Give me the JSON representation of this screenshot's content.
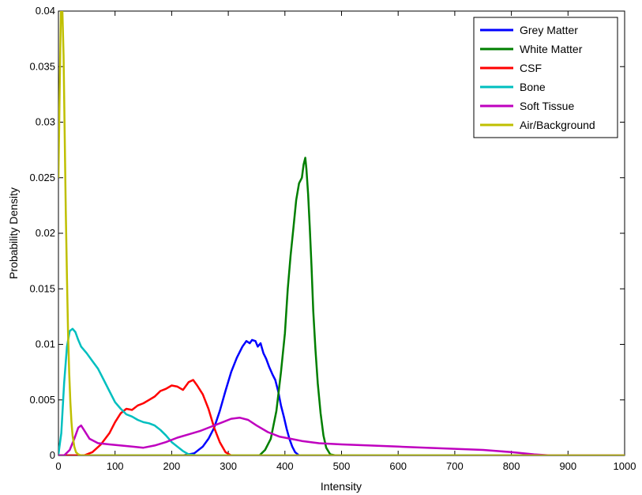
{
  "chart_data": {
    "type": "line",
    "title": "",
    "xlabel": "Intensity",
    "ylabel": "Probability Density",
    "xlim": [
      0,
      1000
    ],
    "ylim": [
      0,
      0.04
    ],
    "x_ticks": [
      0,
      100,
      200,
      300,
      400,
      500,
      600,
      700,
      800,
      900,
      1000
    ],
    "x_tick_labels": [
      "0",
      "100",
      "200",
      "300",
      "400",
      "500",
      "600",
      "700",
      "800",
      "900",
      "1000"
    ],
    "y_ticks": [
      0,
      0.005,
      0.01,
      0.015,
      0.02,
      0.025,
      0.03,
      0.035,
      0.04
    ],
    "y_tick_labels": [
      "0",
      "0.005",
      "0.01",
      "0.015",
      "0.02",
      "0.025",
      "0.03",
      "0.035",
      "0.04"
    ],
    "grid": false,
    "legend_position": "top-right",
    "series": [
      {
        "name": "Grey Matter",
        "color": "#0000ff",
        "points": [
          [
            0,
            0
          ],
          [
            220,
            0
          ],
          [
            240,
            0.0002
          ],
          [
            255,
            0.0008
          ],
          [
            265,
            0.0015
          ],
          [
            275,
            0.0025
          ],
          [
            285,
            0.004
          ],
          [
            295,
            0.0058
          ],
          [
            305,
            0.0075
          ],
          [
            315,
            0.0088
          ],
          [
            325,
            0.0098
          ],
          [
            332,
            0.0103
          ],
          [
            338,
            0.0101
          ],
          [
            342,
            0.0104
          ],
          [
            348,
            0.0103
          ],
          [
            352,
            0.0098
          ],
          [
            357,
            0.0101
          ],
          [
            362,
            0.0092
          ],
          [
            367,
            0.0087
          ],
          [
            372,
            0.008
          ],
          [
            378,
            0.0073
          ],
          [
            383,
            0.0068
          ],
          [
            388,
            0.0058
          ],
          [
            393,
            0.0045
          ],
          [
            398,
            0.0035
          ],
          [
            403,
            0.0024
          ],
          [
            408,
            0.0015
          ],
          [
            413,
            0.0008
          ],
          [
            418,
            0.0003
          ],
          [
            425,
            0
          ],
          [
            1000,
            0
          ]
        ]
      },
      {
        "name": "White Matter",
        "color": "#007f00",
        "points": [
          [
            0,
            0
          ],
          [
            355,
            0
          ],
          [
            365,
            0.0005
          ],
          [
            375,
            0.0015
          ],
          [
            385,
            0.004
          ],
          [
            393,
            0.0075
          ],
          [
            400,
            0.011
          ],
          [
            405,
            0.015
          ],
          [
            410,
            0.018
          ],
          [
            415,
            0.0205
          ],
          [
            420,
            0.023
          ],
          [
            425,
            0.0245
          ],
          [
            430,
            0.025
          ],
          [
            433,
            0.0262
          ],
          [
            436,
            0.0268
          ],
          [
            438,
            0.0258
          ],
          [
            441,
            0.0235
          ],
          [
            444,
            0.0205
          ],
          [
            447,
            0.017
          ],
          [
            450,
            0.013
          ],
          [
            454,
            0.0095
          ],
          [
            458,
            0.0065
          ],
          [
            463,
            0.0038
          ],
          [
            468,
            0.0018
          ],
          [
            473,
            0.0007
          ],
          [
            480,
            0.0001
          ],
          [
            490,
            0
          ],
          [
            1000,
            0
          ]
        ]
      },
      {
        "name": "CSF",
        "color": "#ff0000",
        "points": [
          [
            0,
            0
          ],
          [
            45,
            0
          ],
          [
            60,
            0.0003
          ],
          [
            75,
            0.001
          ],
          [
            90,
            0.002
          ],
          [
            100,
            0.003
          ],
          [
            110,
            0.0038
          ],
          [
            120,
            0.0042
          ],
          [
            130,
            0.0041
          ],
          [
            140,
            0.0045
          ],
          [
            150,
            0.0047
          ],
          [
            160,
            0.005
          ],
          [
            170,
            0.0053
          ],
          [
            180,
            0.0058
          ],
          [
            190,
            0.006
          ],
          [
            200,
            0.0063
          ],
          [
            210,
            0.0062
          ],
          [
            220,
            0.0059
          ],
          [
            230,
            0.0066
          ],
          [
            238,
            0.0068
          ],
          [
            245,
            0.0063
          ],
          [
            255,
            0.0055
          ],
          [
            265,
            0.0042
          ],
          [
            275,
            0.0025
          ],
          [
            285,
            0.0012
          ],
          [
            295,
            0.0003
          ],
          [
            305,
            0
          ],
          [
            1000,
            0
          ]
        ]
      },
      {
        "name": "Bone",
        "color": "#00bfbf",
        "points": [
          [
            0,
            0.0001
          ],
          [
            5,
            0.002
          ],
          [
            10,
            0.0065
          ],
          [
            15,
            0.0098
          ],
          [
            20,
            0.0112
          ],
          [
            25,
            0.0114
          ],
          [
            30,
            0.0111
          ],
          [
            35,
            0.0104
          ],
          [
            40,
            0.0098
          ],
          [
            50,
            0.0092
          ],
          [
            60,
            0.0085
          ],
          [
            70,
            0.0078
          ],
          [
            80,
            0.0068
          ],
          [
            90,
            0.0058
          ],
          [
            100,
            0.0048
          ],
          [
            110,
            0.0042
          ],
          [
            120,
            0.0037
          ],
          [
            130,
            0.0035
          ],
          [
            140,
            0.0032
          ],
          [
            150,
            0.003
          ],
          [
            160,
            0.0029
          ],
          [
            170,
            0.0027
          ],
          [
            180,
            0.0023
          ],
          [
            190,
            0.0018
          ],
          [
            200,
            0.0012
          ],
          [
            210,
            0.0008
          ],
          [
            220,
            0.0004
          ],
          [
            230,
            0.0001
          ],
          [
            245,
            0
          ],
          [
            1000,
            0
          ]
        ]
      },
      {
        "name": "Soft Tissue",
        "color": "#bf00bf",
        "points": [
          [
            0,
            0
          ],
          [
            10,
            0
          ],
          [
            20,
            0.0005
          ],
          [
            28,
            0.0015
          ],
          [
            35,
            0.0025
          ],
          [
            40,
            0.0027
          ],
          [
            45,
            0.0023
          ],
          [
            55,
            0.0015
          ],
          [
            70,
            0.0011
          ],
          [
            90,
            0.001
          ],
          [
            110,
            0.0009
          ],
          [
            130,
            0.0008
          ],
          [
            150,
            0.0007
          ],
          [
            170,
            0.0009
          ],
          [
            190,
            0.0012
          ],
          [
            210,
            0.0016
          ],
          [
            230,
            0.0019
          ],
          [
            250,
            0.0022
          ],
          [
            270,
            0.0026
          ],
          [
            290,
            0.003
          ],
          [
            305,
            0.0033
          ],
          [
            320,
            0.0034
          ],
          [
            335,
            0.0032
          ],
          [
            350,
            0.0027
          ],
          [
            370,
            0.0021
          ],
          [
            390,
            0.0017
          ],
          [
            410,
            0.0015
          ],
          [
            430,
            0.0013
          ],
          [
            460,
            0.0011
          ],
          [
            500,
            0.001
          ],
          [
            550,
            0.0009
          ],
          [
            600,
            0.0008
          ],
          [
            650,
            0.0007
          ],
          [
            700,
            0.0006
          ],
          [
            750,
            0.0005
          ],
          [
            800,
            0.0003
          ],
          [
            840,
            0.0001
          ],
          [
            870,
            0
          ],
          [
            1000,
            0
          ]
        ]
      },
      {
        "name": "Air/Background",
        "color": "#bfbf00",
        "points": [
          [
            0,
            0.025
          ],
          [
            2,
            0.032
          ],
          [
            4,
            0.039
          ],
          [
            5,
            0.042
          ],
          [
            7,
            0.04
          ],
          [
            9,
            0.036
          ],
          [
            11,
            0.029
          ],
          [
            13,
            0.022
          ],
          [
            15,
            0.016
          ],
          [
            17,
            0.011
          ],
          [
            19,
            0.0075
          ],
          [
            21,
            0.0048
          ],
          [
            23,
            0.003
          ],
          [
            25,
            0.0018
          ],
          [
            28,
            0.0008
          ],
          [
            31,
            0.0003
          ],
          [
            35,
            0.0001
          ],
          [
            40,
            0
          ],
          [
            1000,
            0
          ]
        ]
      }
    ]
  }
}
